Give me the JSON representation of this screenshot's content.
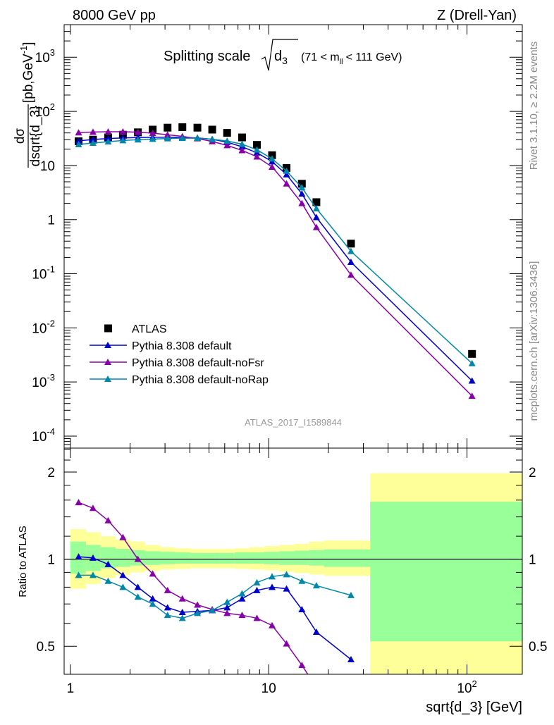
{
  "header": {
    "left": "8000 GeV pp",
    "right": "Z (Drell-Yan)"
  },
  "side_labels": {
    "rivet": "Rivet 3.1.10, ≥ 2.2M events",
    "mcplots": "mcplots.cern.ch [arXiv:1306.3436]"
  },
  "analysis_tag": "ATLAS_2017_I1589844",
  "colors": {
    "data": "#000000",
    "default": "#0000cc",
    "noFsr": "#8800aa",
    "noRap": "#0088aa",
    "band_inner": "#99ff99",
    "band_outer": "#ffff99"
  },
  "chart_data": [
    {
      "type": "line",
      "panel": "main",
      "title_parts": {
        "main": "Splitting scale",
        "sqrt_arg": "d",
        "sqrt_sub": "3",
        "cut_pre": "(71 < m",
        "cut_sub": "ll",
        "cut_post": "< 111 GeV)"
      },
      "ylabel_parts": {
        "num": "dσ",
        "den": "dsqrt{d_3}",
        "units": "[pb,GeV",
        "units_sup": "-1",
        "units_post": "]"
      },
      "xscale": "log",
      "yscale": "log",
      "xlim": [
        0.93,
        190
      ],
      "ylim": [
        6e-05,
        4000
      ],
      "yticks": [
        {
          "v": 0.0001,
          "base": "10",
          "exp": "-4"
        },
        {
          "v": 0.001,
          "base": "10",
          "exp": "-3"
        },
        {
          "v": 0.01,
          "base": "10",
          "exp": "-2"
        },
        {
          "v": 0.1,
          "base": "10",
          "exp": "-1"
        },
        {
          "v": 1,
          "base": "1",
          "exp": ""
        },
        {
          "v": 10,
          "base": "10",
          "exp": ""
        },
        {
          "v": 100,
          "base": "10",
          "exp": "2"
        },
        {
          "v": 1000,
          "base": "10",
          "exp": "3"
        }
      ],
      "legend": {
        "position": "lower-left",
        "entries": [
          {
            "label": "ATLAS",
            "key": "data"
          },
          {
            "label": "Pythia 8.308 default",
            "key": "default"
          },
          {
            "label": "Pythia 8.308 default-noFsr",
            "key": "noFsr"
          },
          {
            "label": "Pythia 8.308 default-noRap",
            "key": "noRap"
          }
        ]
      },
      "series": [
        {
          "name": "ATLAS",
          "key": "data",
          "style": "markers",
          "x": [
            1.1,
            1.3,
            1.55,
            1.84,
            2.19,
            2.6,
            3.09,
            3.67,
            4.37,
            5.19,
            6.17,
            7.34,
            8.72,
            10.4,
            12.3,
            14.7,
            17.4,
            26,
            106
          ],
          "y": [
            28,
            30,
            33,
            37,
            41,
            46,
            50,
            51,
            50,
            46,
            40,
            33,
            24,
            15.5,
            9,
            4.6,
            2.1,
            0.36,
            0.0033
          ]
        },
        {
          "name": "Pythia 8.308 default",
          "key": "default",
          "style": "line",
          "x": [
            1.1,
            1.3,
            1.55,
            1.84,
            2.19,
            2.6,
            3.09,
            3.67,
            4.37,
            5.19,
            6.17,
            7.34,
            8.72,
            10.4,
            12.3,
            14.7,
            17.4,
            26,
            106
          ],
          "y": [
            28.5,
            30.2,
            31.5,
            32.3,
            32.8,
            33.3,
            33.3,
            33,
            32.3,
            30.5,
            27,
            22.2,
            17.2,
            11.8,
            6.8,
            3,
            1.1,
            0.164,
            0.00105
          ]
        },
        {
          "name": "Pythia 8.308 default-noFsr",
          "key": "noFsr",
          "style": "line",
          "x": [
            1.1,
            1.3,
            1.55,
            1.84,
            2.19,
            2.6,
            3.09,
            3.67,
            4.37,
            5.19,
            6.17,
            7.34,
            8.72,
            10.4,
            12.3,
            14.7,
            17.4,
            26,
            106
          ],
          "y": [
            40.5,
            41.5,
            42,
            42,
            41.3,
            39.5,
            37,
            34.5,
            31.5,
            27.8,
            23.5,
            19,
            14.5,
            9.4,
            4.6,
            2,
            0.72,
            0.095,
            0.00055
          ]
        },
        {
          "name": "Pythia 8.308 default-noRap",
          "key": "noRap",
          "style": "line",
          "x": [
            1.1,
            1.3,
            1.55,
            1.84,
            2.19,
            2.6,
            3.09,
            3.67,
            4.37,
            5.19,
            6.17,
            7.34,
            8.72,
            10.4,
            12.3,
            14.7,
            17.4,
            26,
            106
          ],
          "y": [
            24.5,
            26,
            27.5,
            29,
            30,
            30.8,
            31.5,
            32,
            32,
            30.5,
            28.3,
            24.8,
            19.5,
            13.3,
            7.9,
            3.9,
            1.6,
            0.26,
            0.0022
          ]
        }
      ]
    },
    {
      "type": "line",
      "panel": "ratio",
      "ylabel": "Ratio to ATLAS",
      "xlabel": "sqrt{d_3} [GeV]",
      "xscale": "log",
      "yscale": "log",
      "xlim": [
        0.93,
        190
      ],
      "ylim": [
        0.4,
        2.42
      ],
      "yticks": [
        {
          "v": 0.5,
          "label": "0.5"
        },
        {
          "v": 1,
          "label": "1"
        },
        {
          "v": 2,
          "label": "2"
        }
      ],
      "xticks": [
        {
          "v": 1,
          "base": "1",
          "exp": ""
        },
        {
          "v": 10,
          "base": "10",
          "exp": ""
        },
        {
          "v": 100,
          "base": "10",
          "exp": "2"
        }
      ],
      "bands": {
        "edges": [
          1,
          1.2,
          1.42,
          1.69,
          2,
          2.38,
          2.83,
          3.36,
          4,
          4.76,
          5.66,
          6.73,
          8,
          9.51,
          11.3,
          13.5,
          16,
          19,
          32.5,
          190
        ],
        "inner_low": [
          0.89,
          0.91,
          0.93,
          0.94,
          0.95,
          0.955,
          0.96,
          0.965,
          0.965,
          0.965,
          0.965,
          0.965,
          0.965,
          0.96,
          0.955,
          0.955,
          0.95,
          0.94,
          0.52
        ],
        "inner_high": [
          1.15,
          1.12,
          1.1,
          1.085,
          1.075,
          1.065,
          1.06,
          1.055,
          1.05,
          1.05,
          1.05,
          1.055,
          1.055,
          1.06,
          1.065,
          1.07,
          1.075,
          1.08,
          1.58
        ],
        "outer_low": [
          0.79,
          0.82,
          0.86,
          0.88,
          0.9,
          0.91,
          0.92,
          0.925,
          0.93,
          0.93,
          0.93,
          0.925,
          0.92,
          0.915,
          0.905,
          0.895,
          0.885,
          0.875,
          0.35
        ],
        "outer_high": [
          1.27,
          1.24,
          1.2,
          1.17,
          1.15,
          1.12,
          1.1,
          1.09,
          1.085,
          1.085,
          1.085,
          1.09,
          1.1,
          1.11,
          1.12,
          1.13,
          1.15,
          1.16,
          1.98
        ]
      },
      "series": [
        {
          "name": "Pythia 8.308 default",
          "key": "default",
          "x": [
            1.1,
            1.3,
            1.55,
            1.84,
            2.19,
            2.6,
            3.09,
            3.67,
            4.37,
            5.19,
            6.17,
            7.34,
            8.72,
            10.4,
            12.3,
            14.7,
            17.4,
            26
          ],
          "y": [
            1.02,
            1.01,
            0.96,
            0.88,
            0.8,
            0.73,
            0.68,
            0.655,
            0.66,
            0.665,
            0.68,
            0.73,
            0.78,
            0.8,
            0.79,
            0.67,
            0.56,
            0.45
          ]
        },
        {
          "name": "Pythia 8.308 default-noFsr",
          "key": "noFsr",
          "x": [
            1.1,
            1.3,
            1.55,
            1.84,
            2.19,
            2.6,
            3.09,
            3.67,
            4.37,
            5.19,
            6.17,
            7.34,
            8.72,
            10.4,
            12.3,
            14.7,
            17.4
          ],
          "y": [
            1.57,
            1.5,
            1.36,
            1.19,
            1.0,
            0.89,
            0.78,
            0.73,
            0.695,
            0.67,
            0.65,
            0.64,
            0.625,
            0.59,
            0.51,
            0.43,
            0.36
          ]
        },
        {
          "name": "Pythia 8.308 default-noRap",
          "key": "noRap",
          "x": [
            1.1,
            1.3,
            1.55,
            1.84,
            2.19,
            2.6,
            3.09,
            3.67,
            4.37,
            5.19,
            6.17,
            7.34,
            8.72,
            10.4,
            12.3,
            14.7,
            17.4,
            26
          ],
          "y": [
            0.88,
            0.88,
            0.84,
            0.8,
            0.74,
            0.7,
            0.64,
            0.625,
            0.65,
            0.665,
            0.71,
            0.76,
            0.83,
            0.87,
            0.885,
            0.84,
            0.81,
            0.75
          ]
        }
      ]
    }
  ]
}
